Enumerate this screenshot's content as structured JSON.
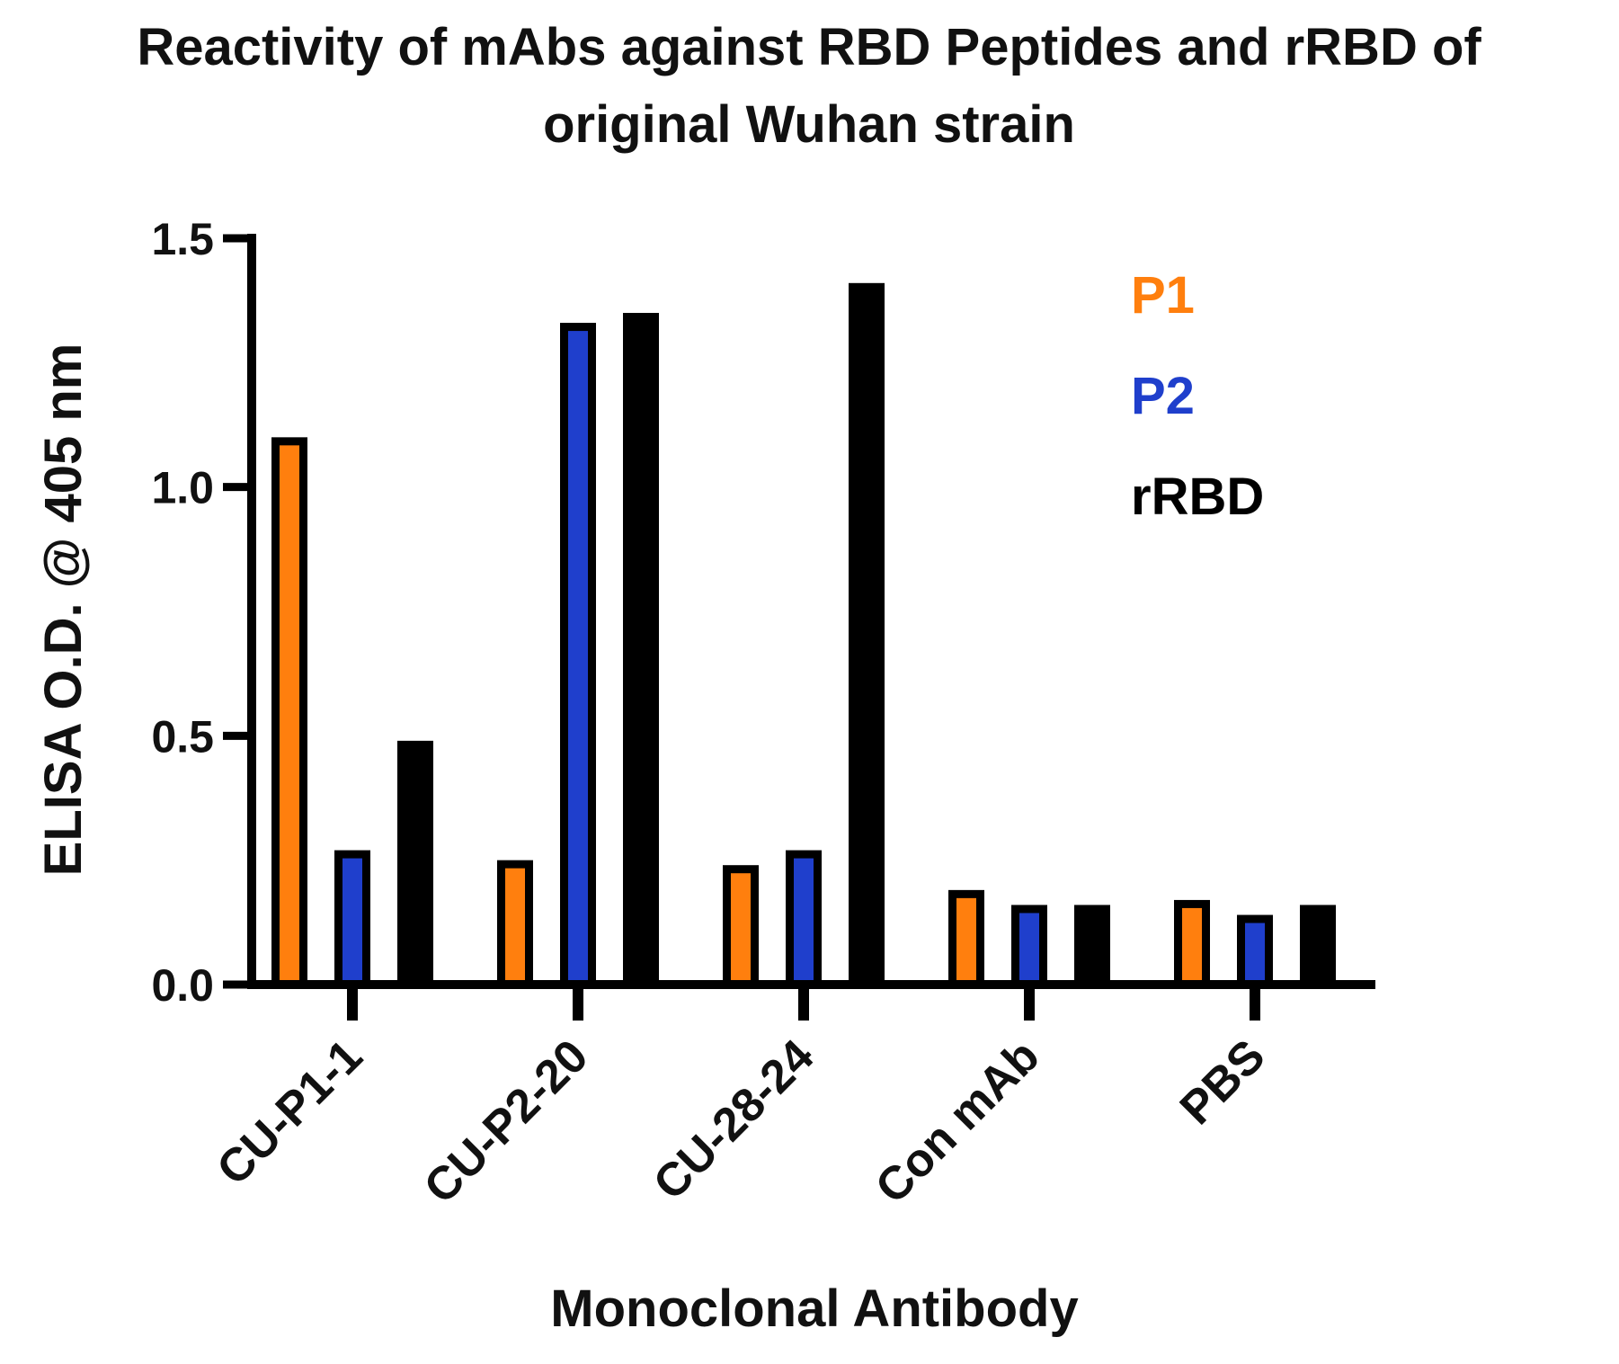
{
  "chart_data": {
    "type": "bar",
    "title": [
      "Reactivity of mAbs against RBD Peptides and rRBD of",
      "original Wuhan strain"
    ],
    "xlabel": "Monoclonal Antibody",
    "ylabel": "ELISA O.D. @ 405 nm",
    "ylim": [
      0,
      1.5
    ],
    "yticks": [
      0.0,
      0.5,
      1.0,
      1.5
    ],
    "ytick_labels": [
      "0.0",
      "0.5",
      "1.0",
      "1.5"
    ],
    "categories": [
      "CU-P1-1",
      "CU-P2-20",
      "CU-28-24",
      "Con mAb",
      "PBS"
    ],
    "series": [
      {
        "name": "P1",
        "color": "#ff7f0e",
        "values": [
          1.1,
          0.25,
          0.24,
          0.19,
          0.17
        ]
      },
      {
        "name": "P2",
        "color": "#1f3fcc",
        "values": [
          0.27,
          1.33,
          0.27,
          0.16,
          0.14
        ]
      },
      {
        "name": "rRBD",
        "color": "#000000",
        "values": [
          0.49,
          1.35,
          1.41,
          0.16,
          0.16
        ]
      }
    ],
    "legend_position": "top-right",
    "grid": false
  }
}
